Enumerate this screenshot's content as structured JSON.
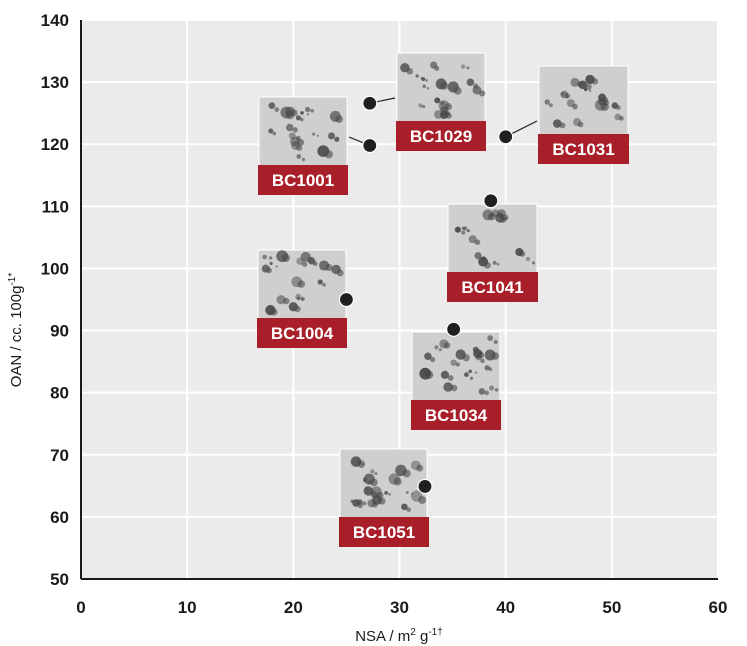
{
  "chart_data": {
    "type": "scatter",
    "title": "",
    "xlabel": "NSA / m",
    "xlabel_sup": "2",
    "xlabel_tail": " g",
    "xlabel_tail_sup": "-1†",
    "ylabel": "OAN / cc. 100g",
    "ylabel_sup": "-1*",
    "xlim": [
      0,
      60
    ],
    "ylim": [
      50,
      140
    ],
    "xticks": [
      0,
      10,
      20,
      30,
      40,
      50,
      60
    ],
    "yticks": [
      50,
      60,
      70,
      80,
      90,
      100,
      110,
      120,
      130,
      140
    ],
    "grid": true,
    "points": [
      {
        "label": "BC1001",
        "x": 27.2,
        "y": 119.8,
        "connector": true
      },
      {
        "label": "BC1029",
        "x": 27.2,
        "y": 126.6,
        "connector": true
      },
      {
        "label": "BC1031",
        "x": 40.0,
        "y": 121.2,
        "connector": true
      },
      {
        "label": "BC1041",
        "x": 38.6,
        "y": 110.9,
        "connector": false
      },
      {
        "label": "BC1004",
        "x": 25.0,
        "y": 95.0,
        "connector": false
      },
      {
        "label": "BC1034",
        "x": 35.1,
        "y": 90.2,
        "connector": false
      },
      {
        "label": "BC1051",
        "x": 32.4,
        "y": 64.9,
        "connector": false
      }
    ]
  },
  "colors": {
    "plot_background": "#ebebeb",
    "gridline": "#ffffff",
    "axis": "#1a1a1a",
    "marker": "#1f1f1f",
    "badge": "#a81f2a",
    "micrograph_bg": "#cfcfcf",
    "particle": "#4a4a4a"
  }
}
